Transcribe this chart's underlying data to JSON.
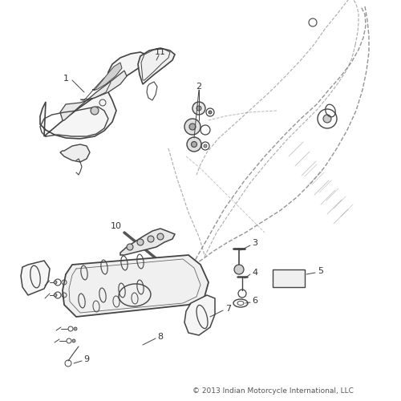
{
  "bg_color": "#ffffff",
  "line_color": "#444444",
  "dashed_color": "#888888",
  "copyright_text": "© 2013 Indian Motorcycle International, LLC",
  "fig_size": [
    5.0,
    5.0
  ],
  "dpi": 100
}
